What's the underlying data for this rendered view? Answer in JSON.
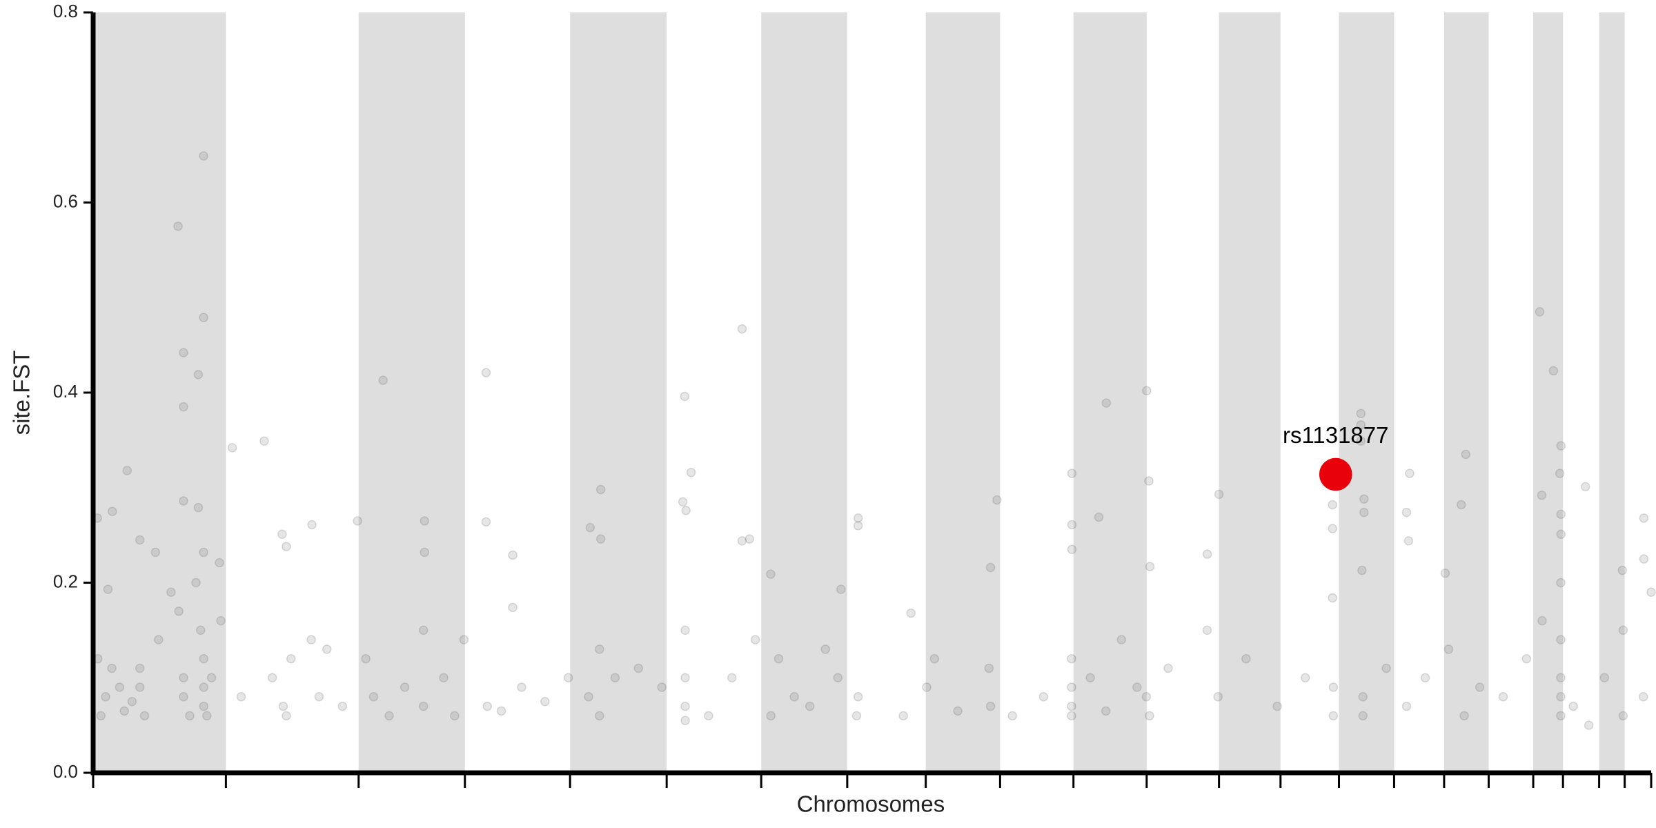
{
  "chart_data": {
    "type": "scatter",
    "x_label": "Chromosomes",
    "y_label": "site.FST",
    "xlim": [
      0,
      1000
    ],
    "ylim": [
      0,
      0.8
    ],
    "yticks": [
      {
        "value": 0,
        "label": "0.0"
      },
      0.2,
      0.4,
      0.6,
      0.8
    ],
    "chromosome_bounds": [
      0,
      85.2,
      170.4,
      238.6,
      306.1,
      368.1,
      428.8,
      484.0,
      534.4,
      582.1,
      629.2,
      676.2,
      722.6,
      762.1,
      799.6,
      835.0,
      867.1,
      895.7,
      924.3,
      943.4,
      966.6,
      983.0,
      1000
    ],
    "band_color": "#dedede",
    "series": [
      {
        "color": "#555555",
        "x": [
          54.5,
          70.9,
          70.9,
          58,
          67.5,
          58,
          21.8,
          58,
          67.5,
          2.7,
          12.3,
          30,
          40,
          9.5,
          70.9,
          81.1,
          89.3,
          109.8,
          121.3,
          140.4,
          124,
          186.1,
          169.7,
          212.7,
          212.7,
          252.2,
          252.2,
          269.3,
          269.3,
          325.8,
          319,
          325.8,
          379.7,
          383.8,
          378.5,
          380.5,
          416.5,
          421.3,
          416.5,
          434.9,
          491,
          491,
          480,
          524.9,
          580.1,
          576,
          628.2,
          628.2,
          628.2,
          650.3,
          645.5,
          676.2,
          677.6,
          678.3,
          722.6,
          715.1,
          795.5,
          795.5,
          795.5,
          813.7,
          813.7,
          813.7,
          815.7,
          815.7,
          814.4,
          845,
          843,
          844.3,
          881,
          878.1,
          867.8,
          928.5,
          937.3,
          942.1,
          941.4,
          929.8,
          957.8,
          942.1,
          942.1,
          995.3,
          995.3,
          981.5,
          3,
          5,
          8,
          12,
          17,
          20,
          25,
          30,
          33,
          30,
          42,
          50,
          55,
          58,
          58,
          62,
          66,
          69,
          71,
          71,
          71,
          73,
          76,
          82,
          95,
          115,
          122,
          124,
          127,
          140,
          145,
          150,
          160,
          175,
          180,
          190,
          200,
          212,
          212,
          225,
          232,
          238,
          253,
          262,
          275,
          290,
          305,
          318,
          325,
          325,
          335,
          350,
          365,
          380,
          380,
          380,
          380,
          395,
          410,
          425,
          435,
          440,
          450,
          460,
          470,
          478,
          490,
          491,
          520,
          535,
          540,
          555,
          575,
          576,
          590,
          610,
          628,
          628,
          628,
          628,
          640,
          650,
          660,
          670,
          676,
          678,
          690,
          715,
          722,
          740,
          760,
          778,
          796,
          796,
          815,
          815,
          830,
          843,
          855,
          870,
          880,
          890,
          905,
          920,
          930,
          942,
          942,
          942,
          942,
          942,
          950,
          960,
          970,
          982,
          982,
          995,
          1000
        ],
        "values": [
          0.575,
          0.649,
          0.479,
          0.442,
          0.419,
          0.385,
          0.318,
          0.286,
          0.279,
          0.268,
          0.275,
          0.245,
          0.232,
          0.193,
          0.232,
          0.221,
          0.342,
          0.349,
          0.251,
          0.261,
          0.238,
          0.413,
          0.265,
          0.265,
          0.232,
          0.421,
          0.264,
          0.229,
          0.174,
          0.298,
          0.258,
          0.246,
          0.396,
          0.316,
          0.285,
          0.276,
          0.467,
          0.246,
          0.244,
          0.209,
          0.268,
          0.26,
          0.193,
          0.168,
          0.287,
          0.216,
          0.315,
          0.261,
          0.235,
          0.389,
          0.269,
          0.402,
          0.307,
          0.217,
          0.293,
          0.23,
          0.282,
          0.257,
          0.184,
          0.378,
          0.366,
          0.349,
          0.288,
          0.274,
          0.213,
          0.315,
          0.274,
          0.244,
          0.335,
          0.282,
          0.21,
          0.485,
          0.423,
          0.344,
          0.315,
          0.292,
          0.301,
          0.272,
          0.251,
          0.268,
          0.225,
          0.213,
          0.12,
          0.06,
          0.08,
          0.11,
          0.09,
          0.065,
          0.075,
          0.11,
          0.06,
          0.09,
          0.14,
          0.19,
          0.17,
          0.1,
          0.08,
          0.06,
          0.2,
          0.15,
          0.12,
          0.07,
          0.09,
          0.06,
          0.1,
          0.16,
          0.08,
          0.1,
          0.07,
          0.06,
          0.12,
          0.14,
          0.08,
          0.13,
          0.07,
          0.12,
          0.08,
          0.06,
          0.09,
          0.15,
          0.07,
          0.1,
          0.06,
          0.14,
          0.07,
          0.065,
          0.09,
          0.075,
          0.1,
          0.08,
          0.13,
          0.06,
          0.1,
          0.11,
          0.09,
          0.15,
          0.1,
          0.07,
          0.055,
          0.06,
          0.1,
          0.14,
          0.06,
          0.12,
          0.08,
          0.07,
          0.13,
          0.1,
          0.06,
          0.08,
          0.06,
          0.09,
          0.12,
          0.065,
          0.11,
          0.07,
          0.06,
          0.08,
          0.12,
          0.09,
          0.07,
          0.06,
          0.1,
          0.065,
          0.14,
          0.09,
          0.08,
          0.06,
          0.11,
          0.15,
          0.08,
          0.12,
          0.07,
          0.1,
          0.09,
          0.06,
          0.08,
          0.06,
          0.11,
          0.07,
          0.1,
          0.13,
          0.06,
          0.09,
          0.08,
          0.12,
          0.16,
          0.06,
          0.08,
          0.1,
          0.14,
          0.2,
          0.07,
          0.05,
          0.1,
          0.06,
          0.15,
          0.08,
          0.19
        ]
      },
      {
        "name": "rs1131877",
        "color": "#e8000b",
        "x": [
          797.5
        ],
        "values": [
          0.314
        ]
      }
    ]
  }
}
